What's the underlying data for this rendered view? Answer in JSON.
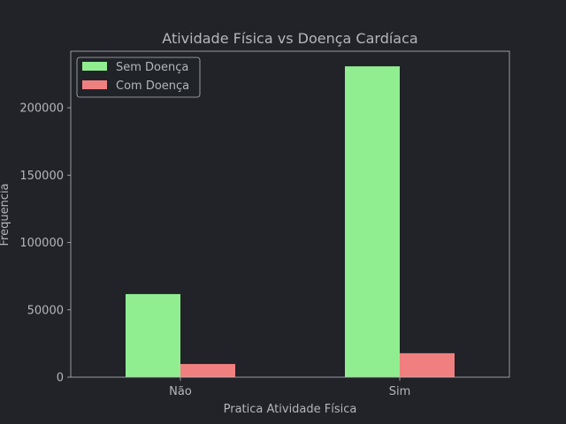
{
  "chart_data": {
    "type": "bar",
    "title": "Atividade Física vs Doença Cardíaca",
    "xlabel": "Pratica Atividade Física",
    "ylabel": "Frequencia",
    "categories": [
      "Não",
      "Sim"
    ],
    "series": [
      {
        "name": "Sem Doença",
        "color": "#90ee90",
        "values": [
          61700,
          230800
        ]
      },
      {
        "name": "Com Doença",
        "color": "#f08080",
        "values": [
          9800,
          17800
        ]
      }
    ],
    "ylim": [
      0,
      242000
    ],
    "yticks": [
      0,
      50000,
      100000,
      150000,
      200000
    ],
    "ytick_labels": [
      "0",
      "50000",
      "100000",
      "150000",
      "200000"
    ],
    "grid": false,
    "legend_position": "top-left"
  },
  "theme": {
    "background": "#212328",
    "text_color": "#b4b6bc",
    "title_color": "#b4b6bc",
    "axis_color": "#b4b6bc"
  }
}
